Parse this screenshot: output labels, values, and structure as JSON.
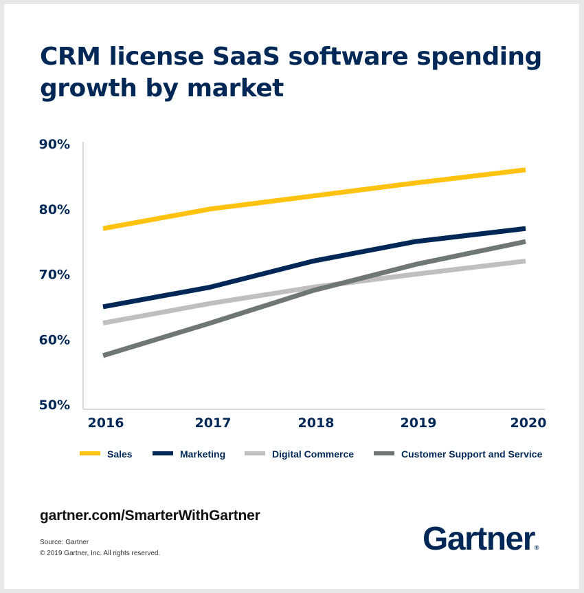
{
  "title": "CRM license SaaS software spending growth by market",
  "footer": {
    "url": "gartner.com/SmarterWithGartner",
    "source": "Source: Gartner",
    "copyright": "© 2019 Gartner, Inc. All rights reserved.",
    "logo_text": "Gartner",
    "logo_mark": "®"
  },
  "chart_data": {
    "type": "line",
    "title": "CRM license SaaS software spending growth by market",
    "xlabel": "",
    "ylabel": "",
    "x": [
      "2016",
      "2017",
      "2018",
      "2019",
      "2020"
    ],
    "yticks": [
      "50%",
      "60%",
      "70%",
      "80%",
      "90%"
    ],
    "ytick_values": [
      50,
      60,
      70,
      80,
      90
    ],
    "ylim": [
      50,
      90
    ],
    "grid": false,
    "legend_position": "bottom",
    "series": [
      {
        "name": "Sales",
        "color": "#FFC20E",
        "values": [
          77,
          80,
          82,
          84,
          86
        ]
      },
      {
        "name": "Marketing",
        "color": "#002856",
        "values": [
          65,
          68,
          72,
          75,
          77
        ]
      },
      {
        "name": "Digital Commerce",
        "color": "#BFBFBF",
        "values": [
          62.5,
          65.5,
          68,
          70,
          72
        ]
      },
      {
        "name": "Customer Support and Service",
        "color": "#6F7775",
        "values": [
          57.5,
          62.5,
          67.5,
          71.5,
          75
        ]
      }
    ]
  }
}
